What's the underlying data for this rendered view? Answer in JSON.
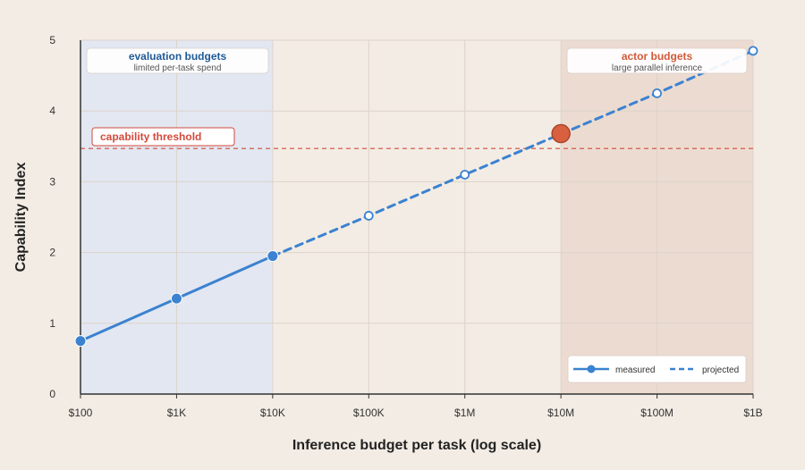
{
  "chart_data": {
    "type": "line",
    "title": "",
    "xlabel": "Inference budget per task (log scale)",
    "ylabel": "Capability Index",
    "x_scale": "log",
    "xlim": [
      100,
      1000000000
    ],
    "ylim": [
      0,
      5
    ],
    "x_ticks": [
      {
        "value": 100,
        "label": "$100"
      },
      {
        "value": 1000,
        "label": "$1K"
      },
      {
        "value": 10000,
        "label": "$10K"
      },
      {
        "value": 100000,
        "label": "$100K"
      },
      {
        "value": 1000000,
        "label": "$1M"
      },
      {
        "value": 10000000,
        "label": "$10M"
      },
      {
        "value": 100000000,
        "label": "$100M"
      },
      {
        "value": 1000000000,
        "label": "$1B"
      }
    ],
    "y_ticks": [
      0,
      1,
      2,
      3,
      4,
      5
    ],
    "grid": true,
    "legend_position": "bottom-right",
    "series": [
      {
        "name": "measured",
        "style": "solid",
        "color": "#3b82d0",
        "points": [
          {
            "x": 100,
            "y": 0.75
          },
          {
            "x": 1000,
            "y": 1.35
          },
          {
            "x": 10000,
            "y": 1.95
          }
        ]
      },
      {
        "name": "projected",
        "style": "dashed",
        "color": "#3b82d0",
        "points": [
          {
            "x": 10000,
            "y": 1.95
          },
          {
            "x": 100000,
            "y": 2.52
          },
          {
            "x": 1000000,
            "y": 3.1
          },
          {
            "x": 100000000,
            "y": 4.25
          },
          {
            "x": 1000000000,
            "y": 4.85
          }
        ]
      }
    ],
    "highlight_point": {
      "x": 10000000,
      "y": 3.68,
      "color": "#d9603f"
    },
    "threshold": {
      "y": 3.47,
      "label": "capability threshold",
      "color": "#d24a3c"
    },
    "regions": [
      {
        "x_from": 100,
        "x_to": 10000,
        "title": "evaluation budgets",
        "subtitle": "limited per-task spend",
        "fill": "#e3e7f1",
        "title_color": "#1f5a96"
      },
      {
        "x_from": 10000000,
        "x_to": 1000000000,
        "title": "actor budgets",
        "subtitle": "large parallel inference",
        "fill": "#ecdbd1",
        "title_color": "#d05a38"
      }
    ]
  }
}
